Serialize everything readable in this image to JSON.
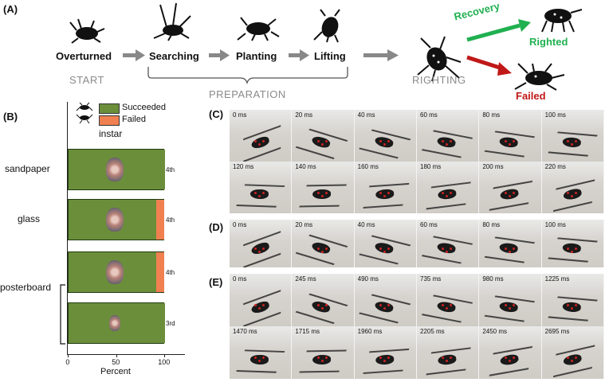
{
  "panel_labels": {
    "a": "(A)",
    "b": "(B)",
    "c": "(C)",
    "d": "(D)",
    "e": "(E)"
  },
  "panel_a": {
    "stages": {
      "overturned": "Overturned",
      "searching": "Searching",
      "planting": "Planting",
      "lifting": "Lifting"
    },
    "start": "START",
    "preparation": "PREPARATION",
    "righting": "RIGHTING",
    "recovery": "Recovery",
    "righted": "Righted",
    "failed": "Failed",
    "colors": {
      "arrow": "#888888",
      "recovery": "#20b050",
      "failed": "#c01818"
    }
  },
  "chart_data": {
    "type": "bar",
    "orientation": "horizontal",
    "stacked": true,
    "legend": [
      "Succeeded",
      "Failed"
    ],
    "legend_extra": "instar",
    "categories": [
      "sandpaper",
      "glass",
      "posterboard",
      "posterboard"
    ],
    "instars": [
      "4th",
      "4th",
      "4th",
      "3rd"
    ],
    "series": [
      {
        "name": "Succeeded",
        "values": [
          100,
          91,
          91,
          100
        ],
        "color": "#6b8e3b"
      },
      {
        "name": "Failed",
        "values": [
          0,
          9,
          9,
          0
        ],
        "color": "#f08050"
      }
    ],
    "xlabel": "Percent",
    "xticks": [
      "0",
      "50",
      "100"
    ],
    "xlim": [
      0,
      100
    ]
  },
  "panel_c": {
    "times": [
      "0 ms",
      "20 ms",
      "40 ms",
      "60 ms",
      "80 ms",
      "100 ms",
      "120 ms",
      "140 ms",
      "160 ms",
      "180 ms",
      "200 ms",
      "220 ms"
    ]
  },
  "panel_d": {
    "times": [
      "0 ms",
      "20 ms",
      "40 ms",
      "60 ms",
      "80 ms",
      "100 ms"
    ]
  },
  "panel_e": {
    "times": [
      "0 ms",
      "245 ms",
      "490 ms",
      "735 ms",
      "980 ms",
      "1225 ms",
      "1470 ms",
      "1715 ms",
      "1960 ms",
      "2205 ms",
      "2450 ms",
      "2695 ms"
    ]
  }
}
